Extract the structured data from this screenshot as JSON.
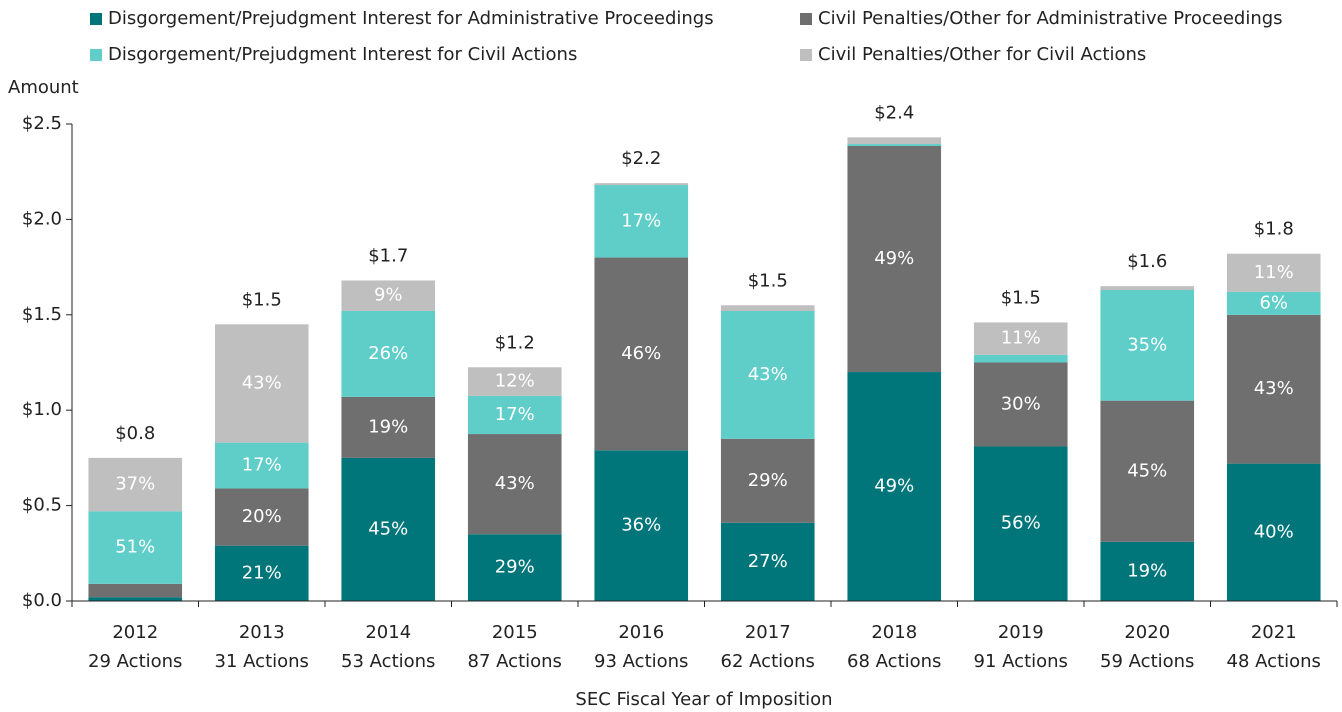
{
  "chart_data": {
    "type": "stacked_bar",
    "y_label": "Amount",
    "x_label": "SEC Fiscal Year of Imposition",
    "categories": [
      "2012",
      "2013",
      "2014",
      "2015",
      "2016",
      "2017",
      "2018",
      "2019",
      "2020",
      "2021"
    ],
    "actions": [
      "29 Actions",
      "31 Actions",
      "53 Actions",
      "87 Actions",
      "93 Actions",
      "62 Actions",
      "68 Actions",
      "91 Actions",
      "59 Actions",
      "48 Actions"
    ],
    "total_labels": [
      "$0.8",
      "$1.5",
      "$1.7",
      "$1.2",
      "$2.2",
      "$1.5",
      "$2.4",
      "$1.5",
      "$1.6",
      "$1.8"
    ],
    "ylim": [
      0,
      2.5
    ],
    "yticks": [
      {
        "value": 0,
        "label": "$0.0"
      },
      {
        "value": 0.5,
        "label": "$0.5"
      },
      {
        "value": 1,
        "label": "$1.0"
      },
      {
        "value": 1.5,
        "label": "$1.5"
      },
      {
        "value": 2,
        "label": "$2.0"
      },
      {
        "value": 2.5,
        "label": "$2.5"
      }
    ],
    "series": [
      {
        "name": "Disgorgement/Prejudgment Interest for Administrative Proceedings",
        "color": "#00767a",
        "values": [
          0.02,
          0.29,
          0.75,
          0.35,
          0.79,
          0.41,
          1.2,
          0.81,
          0.31,
          0.72
        ],
        "segment_labels": [
          null,
          "21%",
          "45%",
          "29%",
          "36%",
          "27%",
          "49%",
          "56%",
          "19%",
          "40%"
        ]
      },
      {
        "name": "Civil Penalties/Other for Administrative Proceedings",
        "color": "#6f6f6f",
        "values": [
          0.07,
          0.3,
          0.32,
          0.525,
          1.01,
          0.44,
          1.185,
          0.44,
          0.74,
          0.78
        ],
        "segment_labels": [
          null,
          "20%",
          "19%",
          "43%",
          "46%",
          "29%",
          "49%",
          "30%",
          "45%",
          "43%"
        ]
      },
      {
        "name": "Disgorgement/Prejudgment Interest for Civil Actions",
        "color": "#5fcdc8",
        "values": [
          0.38,
          0.24,
          0.45,
          0.2,
          0.38,
          0.67,
          0.01,
          0.04,
          0.58,
          0.12
        ],
        "segment_labels": [
          "51%",
          "17%",
          "26%",
          "17%",
          "17%",
          "43%",
          null,
          null,
          "35%",
          "6%"
        ]
      },
      {
        "name": "Civil Penalties/Other for Civil Actions",
        "color": "#bfbfbf",
        "values": [
          0.28,
          0.62,
          0.16,
          0.15,
          0.01,
          0.03,
          0.035,
          0.17,
          0.02,
          0.2
        ],
        "segment_labels": [
          "37%",
          "43%",
          "9%",
          "12%",
          null,
          null,
          null,
          "11%",
          null,
          "11%"
        ]
      }
    ]
  }
}
